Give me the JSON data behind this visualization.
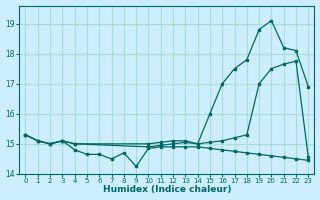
{
  "xlabel": "Humidex (Indice chaleur)",
  "bg_color": "#cceeff",
  "grid_color": "#aaddcc",
  "line_color": "#006666",
  "xlim": [
    -0.5,
    23.5
  ],
  "ylim": [
    14.0,
    19.6
  ],
  "yticks": [
    14,
    15,
    16,
    17,
    18,
    19
  ],
  "xticks": [
    0,
    1,
    2,
    3,
    4,
    5,
    6,
    7,
    8,
    9,
    10,
    11,
    12,
    13,
    14,
    15,
    16,
    17,
    18,
    19,
    20,
    21,
    22,
    23
  ],
  "line1_x": [
    0,
    1,
    2,
    3,
    4,
    5,
    6,
    7,
    8,
    9,
    10,
    11,
    12,
    13,
    14,
    15,
    16,
    17,
    18,
    19,
    20,
    21,
    22,
    23
  ],
  "line1_y": [
    15.3,
    15.1,
    15.0,
    15.1,
    14.8,
    14.65,
    14.65,
    14.5,
    14.7,
    14.25,
    14.85,
    14.9,
    14.9,
    14.9,
    14.9,
    14.85,
    14.8,
    14.75,
    14.7,
    14.65,
    14.6,
    14.55,
    14.5,
    14.45
  ],
  "line2_x": [
    0,
    1,
    2,
    3,
    4,
    10,
    11,
    12,
    13,
    14,
    15,
    16,
    17,
    18,
    19,
    20,
    21,
    22,
    23
  ],
  "line2_y": [
    15.3,
    15.1,
    15.0,
    15.1,
    15.0,
    15.0,
    15.05,
    15.1,
    15.1,
    15.0,
    15.05,
    15.1,
    15.2,
    15.3,
    17.0,
    17.5,
    17.65,
    17.75,
    14.55
  ],
  "line3_x": [
    0,
    1,
    2,
    3,
    4,
    10,
    11,
    12,
    13,
    14,
    15,
    16,
    17,
    18,
    19,
    20,
    21,
    22,
    23
  ],
  "line3_y": [
    15.3,
    15.1,
    15.0,
    15.1,
    15.0,
    14.9,
    14.95,
    15.0,
    15.05,
    15.0,
    16.0,
    17.0,
    17.5,
    17.8,
    18.8,
    19.1,
    18.2,
    18.1,
    16.9
  ]
}
